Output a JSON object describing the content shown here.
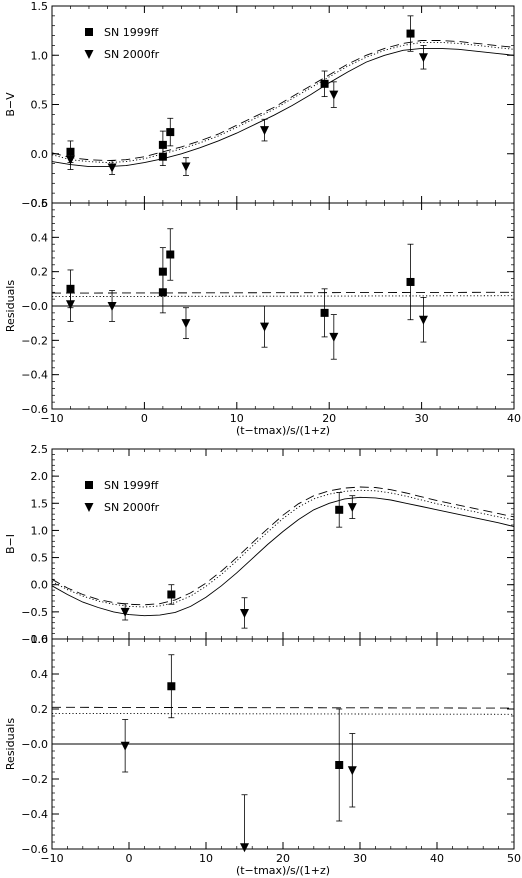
{
  "chart_data": [
    {
      "type": "scatter",
      "panel": "B-V color",
      "ylabel": "B−V",
      "xlim": [
        -10,
        40
      ],
      "ylim": [
        -0.5,
        1.5
      ],
      "yticks": [
        -0.5,
        0.0,
        0.5,
        1.0,
        1.5
      ],
      "ytick_labels": [
        "−0.5",
        "0.0",
        "0.5",
        "1.0",
        "1.5"
      ],
      "legend_placement": "top-left",
      "series": [
        {
          "name": "SN 1999ff",
          "marker": "square",
          "x": [
            -8.0,
            2.0,
            2.0,
            2.8,
            19.5,
            28.8
          ],
          "y": [
            0.02,
            -0.03,
            0.09,
            0.22,
            0.71,
            1.22
          ],
          "err": [
            0.11,
            0.09,
            0.14,
            0.14,
            0.13,
            0.18
          ]
        },
        {
          "name": "SN 2000fr",
          "marker": "triangle-down",
          "x": [
            -8.0,
            -3.5,
            4.5,
            13.0,
            20.5,
            30.2
          ],
          "y": [
            -0.06,
            -0.14,
            -0.13,
            0.24,
            0.6,
            0.98
          ],
          "err": [
            0.1,
            0.07,
            0.09,
            0.11,
            0.13,
            0.12
          ]
        }
      ],
      "models": [
        {
          "style": "solid",
          "x": [
            -10,
            -8,
            -6,
            -4,
            -2,
            0,
            2,
            4,
            6,
            8,
            10,
            12,
            14,
            16,
            18,
            20,
            22,
            24,
            26,
            28,
            30,
            32,
            34,
            36,
            38,
            40
          ],
          "y": [
            -0.08,
            -0.11,
            -0.13,
            -0.13,
            -0.12,
            -0.09,
            -0.05,
            0.0,
            0.06,
            0.13,
            0.21,
            0.3,
            0.39,
            0.49,
            0.6,
            0.72,
            0.83,
            0.93,
            1.0,
            1.05,
            1.07,
            1.07,
            1.06,
            1.04,
            1.02,
            1.0
          ]
        },
        {
          "style": "dashed",
          "x": [
            -10,
            -8,
            -6,
            -4,
            -2,
            0,
            2,
            4,
            6,
            8,
            10,
            12,
            14,
            16,
            18,
            20,
            22,
            24,
            26,
            28,
            30,
            32,
            34,
            36,
            38,
            40
          ],
          "y": [
            0.01,
            -0.04,
            -0.06,
            -0.07,
            -0.06,
            -0.03,
            0.02,
            0.07,
            0.13,
            0.2,
            0.29,
            0.38,
            0.47,
            0.58,
            0.69,
            0.8,
            0.91,
            1.0,
            1.07,
            1.12,
            1.15,
            1.15,
            1.14,
            1.12,
            1.1,
            1.08
          ]
        },
        {
          "style": "dotted",
          "x": [
            -10,
            -8,
            -6,
            -4,
            -2,
            0,
            2,
            4,
            6,
            8,
            10,
            12,
            14,
            16,
            18,
            20,
            22,
            24,
            26,
            28,
            30,
            32,
            34,
            36,
            38,
            40
          ],
          "y": [
            -0.01,
            -0.06,
            -0.08,
            -0.09,
            -0.08,
            -0.05,
            0.0,
            0.05,
            0.11,
            0.18,
            0.27,
            0.36,
            0.45,
            0.56,
            0.67,
            0.78,
            0.89,
            0.98,
            1.05,
            1.1,
            1.13,
            1.13,
            1.12,
            1.1,
            1.08,
            1.06
          ]
        }
      ]
    },
    {
      "type": "scatter",
      "panel": "B-V residuals",
      "ylabel": "Residuals",
      "xlabel": "(t−tmax)/s/(1+z)",
      "xlim": [
        -10,
        40
      ],
      "ylim": [
        -0.6,
        0.6
      ],
      "xticks": [
        -10,
        0,
        10,
        20,
        30,
        40
      ],
      "xtick_labels": [
        "−10",
        "0",
        "10",
        "20",
        "30",
        "40"
      ],
      "yticks": [
        -0.6,
        -0.4,
        -0.2,
        0.0,
        0.2,
        0.4,
        0.6
      ],
      "ytick_labels": [
        "−0.6",
        "−0.4",
        "−0.2",
        "−0.0",
        "0.2",
        "0.4",
        "0.6"
      ],
      "series": [
        {
          "name": "SN 1999ff",
          "marker": "square",
          "x": [
            -8.0,
            2.0,
            2.0,
            2.8,
            19.5,
            28.8
          ],
          "y": [
            0.1,
            0.08,
            0.2,
            0.3,
            -0.04,
            0.14
          ],
          "err": [
            0.11,
            0.12,
            0.14,
            0.15,
            0.14,
            0.22
          ]
        },
        {
          "name": "SN 2000fr",
          "marker": "triangle-down",
          "x": [
            -8.0,
            -3.5,
            4.5,
            13.0,
            20.5,
            30.2
          ],
          "y": [
            0.01,
            0.0,
            -0.1,
            -0.12,
            -0.18,
            -0.08
          ],
          "err": [
            0.1,
            0.09,
            0.09,
            0.12,
            0.13,
            0.13
          ]
        }
      ],
      "models": [
        {
          "style": "solid",
          "x": [
            -10,
            40
          ],
          "y": [
            0.0,
            0.0
          ]
        },
        {
          "style": "dashed",
          "x": [
            -10,
            40
          ],
          "y": [
            0.075,
            0.08
          ]
        },
        {
          "style": "dotted",
          "x": [
            -10,
            40
          ],
          "y": [
            0.055,
            0.06
          ]
        }
      ]
    },
    {
      "type": "scatter",
      "panel": "B-I color",
      "ylabel": "B−I",
      "xlim": [
        -10,
        50
      ],
      "ylim": [
        -1.0,
        2.5
      ],
      "yticks": [
        -1.0,
        -0.5,
        0.0,
        0.5,
        1.0,
        1.5,
        2.0,
        2.5
      ],
      "ytick_labels": [
        "−1.0",
        "−0.5",
        "0.0",
        "0.5",
        "1.0",
        "1.5",
        "2.0",
        "2.5"
      ],
      "legend_placement": "top-left",
      "series": [
        {
          "name": "SN 1999ff",
          "marker": "square",
          "x": [
            5.5,
            27.3
          ],
          "y": [
            -0.18,
            1.38
          ],
          "err": [
            0.18,
            0.32
          ]
        },
        {
          "name": "SN 2000fr",
          "marker": "triangle-down",
          "x": [
            -0.5,
            15.0,
            29.0
          ],
          "y": [
            -0.5,
            -0.52,
            1.43
          ],
          "err": [
            0.15,
            0.28,
            0.21
          ]
        }
      ],
      "models": [
        {
          "style": "solid",
          "x": [
            -10,
            -8,
            -6,
            -4,
            -2,
            0,
            2,
            4,
            6,
            8,
            10,
            12,
            14,
            16,
            18,
            20,
            22,
            24,
            26,
            28,
            30,
            32,
            34,
            36,
            38,
            40,
            42,
            44,
            46,
            48,
            50
          ],
          "y": [
            -0.02,
            -0.18,
            -0.32,
            -0.42,
            -0.5,
            -0.55,
            -0.57,
            -0.56,
            -0.51,
            -0.4,
            -0.23,
            -0.02,
            0.22,
            0.48,
            0.74,
            0.98,
            1.2,
            1.38,
            1.5,
            1.58,
            1.61,
            1.6,
            1.56,
            1.5,
            1.44,
            1.38,
            1.32,
            1.26,
            1.2,
            1.14,
            1.07
          ]
        },
        {
          "style": "dashed",
          "x": [
            -10,
            -8,
            -6,
            -4,
            -2,
            0,
            2,
            4,
            6,
            8,
            10,
            12,
            14,
            16,
            18,
            20,
            22,
            24,
            26,
            28,
            30,
            32,
            34,
            36,
            38,
            40,
            42,
            44,
            46,
            48,
            50
          ],
          "y": [
            0.1,
            -0.06,
            -0.18,
            -0.27,
            -0.33,
            -0.36,
            -0.37,
            -0.35,
            -0.28,
            -0.15,
            0.03,
            0.25,
            0.5,
            0.77,
            1.03,
            1.28,
            1.49,
            1.64,
            1.73,
            1.78,
            1.8,
            1.79,
            1.75,
            1.69,
            1.62,
            1.55,
            1.49,
            1.43,
            1.37,
            1.31,
            1.25
          ]
        },
        {
          "style": "dotted",
          "x": [
            -10,
            -8,
            -6,
            -4,
            -2,
            0,
            2,
            4,
            6,
            8,
            10,
            12,
            14,
            16,
            18,
            20,
            22,
            24,
            26,
            28,
            30,
            32,
            34,
            36,
            38,
            40,
            42,
            44,
            46,
            48,
            50
          ],
          "y": [
            0.06,
            -0.09,
            -0.21,
            -0.3,
            -0.36,
            -0.4,
            -0.41,
            -0.39,
            -0.33,
            -0.21,
            -0.03,
            0.19,
            0.44,
            0.71,
            0.97,
            1.22,
            1.43,
            1.58,
            1.67,
            1.72,
            1.74,
            1.73,
            1.69,
            1.63,
            1.56,
            1.49,
            1.43,
            1.37,
            1.31,
            1.25,
            1.19
          ]
        }
      ]
    },
    {
      "type": "scatter",
      "panel": "B-I residuals",
      "ylabel": "Residuals",
      "xlabel": "(t−tmax)/s/(1+z)",
      "xlim": [
        -10,
        50
      ],
      "ylim": [
        -0.6,
        0.6
      ],
      "xticks": [
        -10,
        0,
        10,
        20,
        30,
        40,
        50
      ],
      "xtick_labels": [
        "−10",
        "0",
        "10",
        "20",
        "30",
        "40",
        "50"
      ],
      "yticks": [
        -0.6,
        -0.4,
        -0.2,
        0.0,
        0.2,
        0.4,
        0.6
      ],
      "ytick_labels": [
        "−0.6",
        "−0.4",
        "−0.2",
        "−0.0",
        "0.2",
        "0.4",
        "0.6"
      ],
      "series": [
        {
          "name": "SN 1999ff",
          "marker": "square",
          "x": [
            5.5,
            27.3
          ],
          "y": [
            0.33,
            -0.12
          ],
          "err": [
            0.18,
            0.32
          ]
        },
        {
          "name": "SN 2000fr",
          "marker": "triangle-down",
          "x": [
            -0.5,
            15.0,
            29.0
          ],
          "y": [
            -0.01,
            -0.59,
            -0.15
          ],
          "err": [
            0.15,
            0.3,
            0.21
          ]
        }
      ],
      "models": [
        {
          "style": "solid",
          "x": [
            -10,
            50
          ],
          "y": [
            0.0,
            0.0
          ]
        },
        {
          "style": "dashed",
          "x": [
            -10,
            50
          ],
          "y": [
            0.21,
            0.205
          ]
        },
        {
          "style": "dotted",
          "x": [
            -10,
            50
          ],
          "y": [
            0.175,
            0.17
          ]
        }
      ]
    }
  ]
}
